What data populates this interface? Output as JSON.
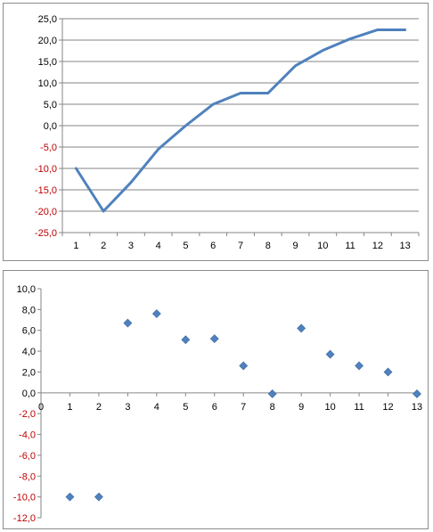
{
  "chart_data": [
    {
      "type": "line",
      "x": [
        1,
        2,
        3,
        4,
        5,
        6,
        7,
        8,
        9,
        10,
        11,
        12,
        13
      ],
      "series": [
        {
          "values": [
            -10,
            -20,
            -13.3,
            -5.5,
            0,
            5,
            7.6,
            7.6,
            14,
            17.6,
            20.3,
            22.4,
            22.4
          ]
        }
      ],
      "ylim": [
        -25,
        25
      ],
      "ytick_step": 5,
      "ytick_labels": [
        "25,0",
        "20,0",
        "15,0",
        "10,0",
        "5,0",
        "0,0",
        "-5,0",
        "-10,0",
        "-15,0",
        "-20,0",
        "-25,0"
      ],
      "xtick_labels": [
        "1",
        "2",
        "3",
        "4",
        "5",
        "6",
        "7",
        "8",
        "9",
        "10",
        "11",
        "12",
        "13"
      ],
      "grid": true,
      "line_color": "#4f81bd",
      "negative_tick_color": "#c00000"
    },
    {
      "type": "scatter",
      "x": [
        1,
        2,
        3,
        4,
        5,
        6,
        7,
        8,
        9,
        10,
        11,
        12,
        13
      ],
      "series": [
        {
          "values": [
            -10,
            -10,
            6.7,
            7.6,
            5.1,
            5.2,
            2.6,
            -0.1,
            6.2,
            3.7,
            2.6,
            2,
            -0.1
          ]
        }
      ],
      "xlim": [
        0,
        13
      ],
      "ylim": [
        -12,
        10
      ],
      "ytick_labels": [
        "10,0",
        "8,0",
        "6,0",
        "4,0",
        "2,0",
        "0,0",
        "-2,0",
        "-4,0",
        "-6,0",
        "-8,0",
        "-10,0",
        "-12,0"
      ],
      "xtick_labels": [
        "0",
        "1",
        "2",
        "3",
        "4",
        "5",
        "6",
        "7",
        "8",
        "9",
        "10",
        "11",
        "12",
        "13"
      ],
      "grid": false,
      "marker": "diamond",
      "marker_color": "#4f81bd",
      "negative_tick_color": "#c00000"
    }
  ]
}
